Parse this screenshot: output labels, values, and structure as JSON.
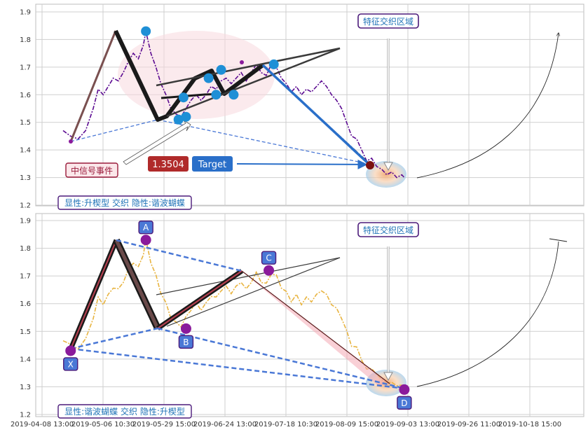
{
  "colors": {
    "price_top": "#5b0a91",
    "price_bottom": "#e8b440",
    "target_red": "#b02a2a",
    "target_blue": "#2a6fc9",
    "label_text": "#1f73b7",
    "label_border": "#4b1a7a",
    "point_blue": "#1e8fd6",
    "point_purple": "#8a1a9b",
    "dash_blue": "#4a78d6",
    "leg_dark": "#1a1a1a",
    "pink": "#f4a9b4",
    "grid": "#cfcfcf"
  },
  "icons": [
    "arrow-icon",
    "curve-arrow-icon"
  ],
  "chart_data": [
    {
      "type": "line",
      "x_tick_labels": [
        "2019-04-08 13:00",
        "2019-05-06 10:30",
        "2019-05-29 15:00",
        "2019-06-24 13:00",
        "2019-07-18 10:30",
        "2019-08-09 15:00",
        "2019-09-03 13:00",
        "2019-09-26 11:00",
        "2019-10-18 15:00"
      ],
      "y_ticks": [
        1.2,
        1.3,
        1.4,
        1.5,
        1.6,
        1.7,
        1.8,
        1.9
      ],
      "ylim": [
        1.19,
        1.92
      ],
      "grid": true,
      "price_series": [
        [
          0,
          1.47
        ],
        [
          3,
          1.45
        ],
        [
          6,
          1.44
        ],
        [
          9,
          1.47
        ],
        [
          12,
          1.55
        ],
        [
          14,
          1.62
        ],
        [
          16,
          1.6
        ],
        [
          18,
          1.63
        ],
        [
          20,
          1.66
        ],
        [
          22,
          1.65
        ],
        [
          24,
          1.68
        ],
        [
          26,
          1.72
        ],
        [
          28,
          1.75
        ],
        [
          30,
          1.73
        ],
        [
          32,
          1.78
        ],
        [
          33,
          1.83
        ],
        [
          35,
          1.75
        ],
        [
          37,
          1.7
        ],
        [
          39,
          1.64
        ],
        [
          41,
          1.6
        ],
        [
          43,
          1.55
        ],
        [
          45,
          1.53
        ],
        [
          47,
          1.52
        ],
        [
          49,
          1.55
        ],
        [
          51,
          1.58
        ],
        [
          53,
          1.6
        ],
        [
          55,
          1.58
        ],
        [
          57,
          1.6
        ],
        [
          59,
          1.63
        ],
        [
          61,
          1.62
        ],
        [
          63,
          1.65
        ],
        [
          65,
          1.66
        ],
        [
          67,
          1.64
        ],
        [
          69,
          1.66
        ],
        [
          71,
          1.68
        ],
        [
          73,
          1.65
        ],
        [
          75,
          1.68
        ],
        [
          77,
          1.71
        ],
        [
          79,
          1.68
        ],
        [
          81,
          1.67
        ],
        [
          83,
          1.71
        ],
        [
          85,
          1.7
        ],
        [
          87,
          1.66
        ],
        [
          89,
          1.64
        ],
        [
          91,
          1.61
        ],
        [
          93,
          1.63
        ],
        [
          95,
          1.6
        ],
        [
          97,
          1.62
        ],
        [
          99,
          1.61
        ],
        [
          101,
          1.63
        ],
        [
          103,
          1.65
        ],
        [
          105,
          1.63
        ],
        [
          107,
          1.6
        ],
        [
          109,
          1.58
        ],
        [
          111,
          1.55
        ],
        [
          113,
          1.5
        ],
        [
          115,
          1.45
        ],
        [
          117,
          1.44
        ],
        [
          119,
          1.4
        ],
        [
          121,
          1.36
        ],
        [
          123,
          1.37
        ],
        [
          125,
          1.34
        ],
        [
          127,
          1.33
        ],
        [
          129,
          1.31
        ],
        [
          131,
          1.32
        ],
        [
          133,
          1.3
        ],
        [
          135,
          1.31
        ],
        [
          136,
          1.3
        ]
      ],
      "points": [
        {
          "x": 33,
          "y": 1.83
        },
        {
          "x": 46,
          "y": 1.51
        },
        {
          "x": 48,
          "y": 1.59
        },
        {
          "x": 49,
          "y": 1.52
        },
        {
          "x": 58,
          "y": 1.66
        },
        {
          "x": 61,
          "y": 1.6
        },
        {
          "x": 63,
          "y": 1.69
        },
        {
          "x": 68,
          "y": 1.6
        },
        {
          "x": 84,
          "y": 1.71
        }
      ],
      "labels": {
        "feature_zone": "特征交织区域",
        "signal_event": "中信号事件",
        "target_value": "1.3504",
        "target": "Target",
        "pattern_caption": "显性:升楔型 交织 隐性:谐波蝴蝶"
      }
    },
    {
      "type": "line",
      "x_tick_labels": [
        "2019-04-08 13:00",
        "2019-05-06 10:30",
        "2019-05-29 15:00",
        "2019-06-24 13:00",
        "2019-07-18 10:30",
        "2019-08-09 15:00",
        "2019-09-03 13:00",
        "2019-09-26 11:00",
        "2019-10-18 15:00"
      ],
      "y_ticks": [
        1.2,
        1.3,
        1.4,
        1.5,
        1.6,
        1.7,
        1.8,
        1.9
      ],
      "ylim": [
        1.19,
        1.92
      ],
      "grid": true,
      "points": [
        {
          "name": "X",
          "x": 3,
          "y": 1.43
        },
        {
          "name": "A",
          "x": 33,
          "y": 1.83
        },
        {
          "name": "B",
          "x": 49,
          "y": 1.51
        },
        {
          "name": "C",
          "x": 82,
          "y": 1.72
        },
        {
          "name": "D",
          "x": 136,
          "y": 1.29
        }
      ],
      "labels": {
        "feature_zone": "特征交织区域",
        "pattern_caption": "显性:谐波蝴蝶 交织 隐性:升楔型"
      }
    }
  ]
}
